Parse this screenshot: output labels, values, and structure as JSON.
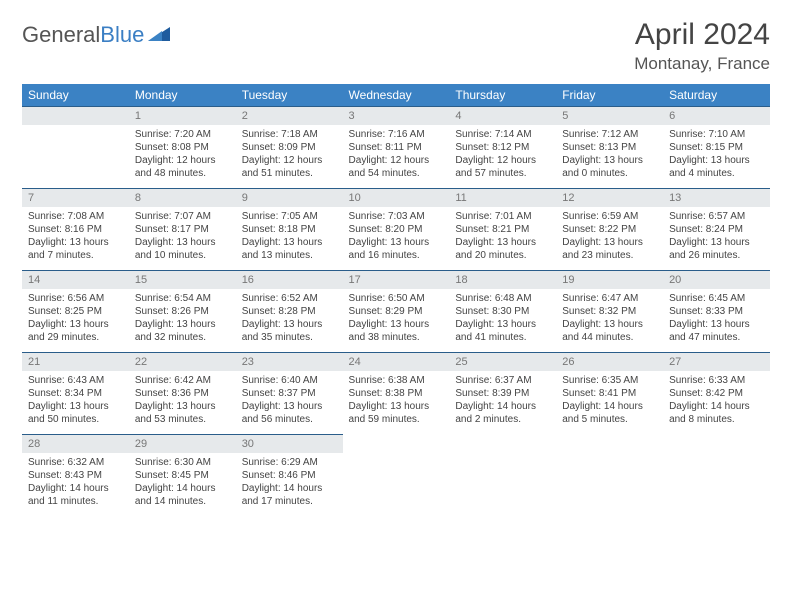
{
  "logo": {
    "word1": "General",
    "word2": "Blue"
  },
  "title": "April 2024",
  "location": "Montanay, France",
  "colors": {
    "header_bg": "#3b82c4",
    "header_text": "#ffffff",
    "daynum_bg": "#e6e9eb",
    "daynum_text": "#777777",
    "border": "#2a5d8a",
    "body_text": "#444444",
    "logo_gray": "#555555",
    "logo_blue": "#3b7fc4"
  },
  "weekdays": [
    "Sunday",
    "Monday",
    "Tuesday",
    "Wednesday",
    "Thursday",
    "Friday",
    "Saturday"
  ],
  "weeks": [
    [
      null,
      {
        "n": "1",
        "sr": "Sunrise: 7:20 AM",
        "ss": "Sunset: 8:08 PM",
        "d1": "Daylight: 12 hours",
        "d2": "and 48 minutes."
      },
      {
        "n": "2",
        "sr": "Sunrise: 7:18 AM",
        "ss": "Sunset: 8:09 PM",
        "d1": "Daylight: 12 hours",
        "d2": "and 51 minutes."
      },
      {
        "n": "3",
        "sr": "Sunrise: 7:16 AM",
        "ss": "Sunset: 8:11 PM",
        "d1": "Daylight: 12 hours",
        "d2": "and 54 minutes."
      },
      {
        "n": "4",
        "sr": "Sunrise: 7:14 AM",
        "ss": "Sunset: 8:12 PM",
        "d1": "Daylight: 12 hours",
        "d2": "and 57 minutes."
      },
      {
        "n": "5",
        "sr": "Sunrise: 7:12 AM",
        "ss": "Sunset: 8:13 PM",
        "d1": "Daylight: 13 hours",
        "d2": "and 0 minutes."
      },
      {
        "n": "6",
        "sr": "Sunrise: 7:10 AM",
        "ss": "Sunset: 8:15 PM",
        "d1": "Daylight: 13 hours",
        "d2": "and 4 minutes."
      }
    ],
    [
      {
        "n": "7",
        "sr": "Sunrise: 7:08 AM",
        "ss": "Sunset: 8:16 PM",
        "d1": "Daylight: 13 hours",
        "d2": "and 7 minutes."
      },
      {
        "n": "8",
        "sr": "Sunrise: 7:07 AM",
        "ss": "Sunset: 8:17 PM",
        "d1": "Daylight: 13 hours",
        "d2": "and 10 minutes."
      },
      {
        "n": "9",
        "sr": "Sunrise: 7:05 AM",
        "ss": "Sunset: 8:18 PM",
        "d1": "Daylight: 13 hours",
        "d2": "and 13 minutes."
      },
      {
        "n": "10",
        "sr": "Sunrise: 7:03 AM",
        "ss": "Sunset: 8:20 PM",
        "d1": "Daylight: 13 hours",
        "d2": "and 16 minutes."
      },
      {
        "n": "11",
        "sr": "Sunrise: 7:01 AM",
        "ss": "Sunset: 8:21 PM",
        "d1": "Daylight: 13 hours",
        "d2": "and 20 minutes."
      },
      {
        "n": "12",
        "sr": "Sunrise: 6:59 AM",
        "ss": "Sunset: 8:22 PM",
        "d1": "Daylight: 13 hours",
        "d2": "and 23 minutes."
      },
      {
        "n": "13",
        "sr": "Sunrise: 6:57 AM",
        "ss": "Sunset: 8:24 PM",
        "d1": "Daylight: 13 hours",
        "d2": "and 26 minutes."
      }
    ],
    [
      {
        "n": "14",
        "sr": "Sunrise: 6:56 AM",
        "ss": "Sunset: 8:25 PM",
        "d1": "Daylight: 13 hours",
        "d2": "and 29 minutes."
      },
      {
        "n": "15",
        "sr": "Sunrise: 6:54 AM",
        "ss": "Sunset: 8:26 PM",
        "d1": "Daylight: 13 hours",
        "d2": "and 32 minutes."
      },
      {
        "n": "16",
        "sr": "Sunrise: 6:52 AM",
        "ss": "Sunset: 8:28 PM",
        "d1": "Daylight: 13 hours",
        "d2": "and 35 minutes."
      },
      {
        "n": "17",
        "sr": "Sunrise: 6:50 AM",
        "ss": "Sunset: 8:29 PM",
        "d1": "Daylight: 13 hours",
        "d2": "and 38 minutes."
      },
      {
        "n": "18",
        "sr": "Sunrise: 6:48 AM",
        "ss": "Sunset: 8:30 PM",
        "d1": "Daylight: 13 hours",
        "d2": "and 41 minutes."
      },
      {
        "n": "19",
        "sr": "Sunrise: 6:47 AM",
        "ss": "Sunset: 8:32 PM",
        "d1": "Daylight: 13 hours",
        "d2": "and 44 minutes."
      },
      {
        "n": "20",
        "sr": "Sunrise: 6:45 AM",
        "ss": "Sunset: 8:33 PM",
        "d1": "Daylight: 13 hours",
        "d2": "and 47 minutes."
      }
    ],
    [
      {
        "n": "21",
        "sr": "Sunrise: 6:43 AM",
        "ss": "Sunset: 8:34 PM",
        "d1": "Daylight: 13 hours",
        "d2": "and 50 minutes."
      },
      {
        "n": "22",
        "sr": "Sunrise: 6:42 AM",
        "ss": "Sunset: 8:36 PM",
        "d1": "Daylight: 13 hours",
        "d2": "and 53 minutes."
      },
      {
        "n": "23",
        "sr": "Sunrise: 6:40 AM",
        "ss": "Sunset: 8:37 PM",
        "d1": "Daylight: 13 hours",
        "d2": "and 56 minutes."
      },
      {
        "n": "24",
        "sr": "Sunrise: 6:38 AM",
        "ss": "Sunset: 8:38 PM",
        "d1": "Daylight: 13 hours",
        "d2": "and 59 minutes."
      },
      {
        "n": "25",
        "sr": "Sunrise: 6:37 AM",
        "ss": "Sunset: 8:39 PM",
        "d1": "Daylight: 14 hours",
        "d2": "and 2 minutes."
      },
      {
        "n": "26",
        "sr": "Sunrise: 6:35 AM",
        "ss": "Sunset: 8:41 PM",
        "d1": "Daylight: 14 hours",
        "d2": "and 5 minutes."
      },
      {
        "n": "27",
        "sr": "Sunrise: 6:33 AM",
        "ss": "Sunset: 8:42 PM",
        "d1": "Daylight: 14 hours",
        "d2": "and 8 minutes."
      }
    ],
    [
      {
        "n": "28",
        "sr": "Sunrise: 6:32 AM",
        "ss": "Sunset: 8:43 PM",
        "d1": "Daylight: 14 hours",
        "d2": "and 11 minutes."
      },
      {
        "n": "29",
        "sr": "Sunrise: 6:30 AM",
        "ss": "Sunset: 8:45 PM",
        "d1": "Daylight: 14 hours",
        "d2": "and 14 minutes."
      },
      {
        "n": "30",
        "sr": "Sunrise: 6:29 AM",
        "ss": "Sunset: 8:46 PM",
        "d1": "Daylight: 14 hours",
        "d2": "and 17 minutes."
      },
      null,
      null,
      null,
      null
    ]
  ]
}
